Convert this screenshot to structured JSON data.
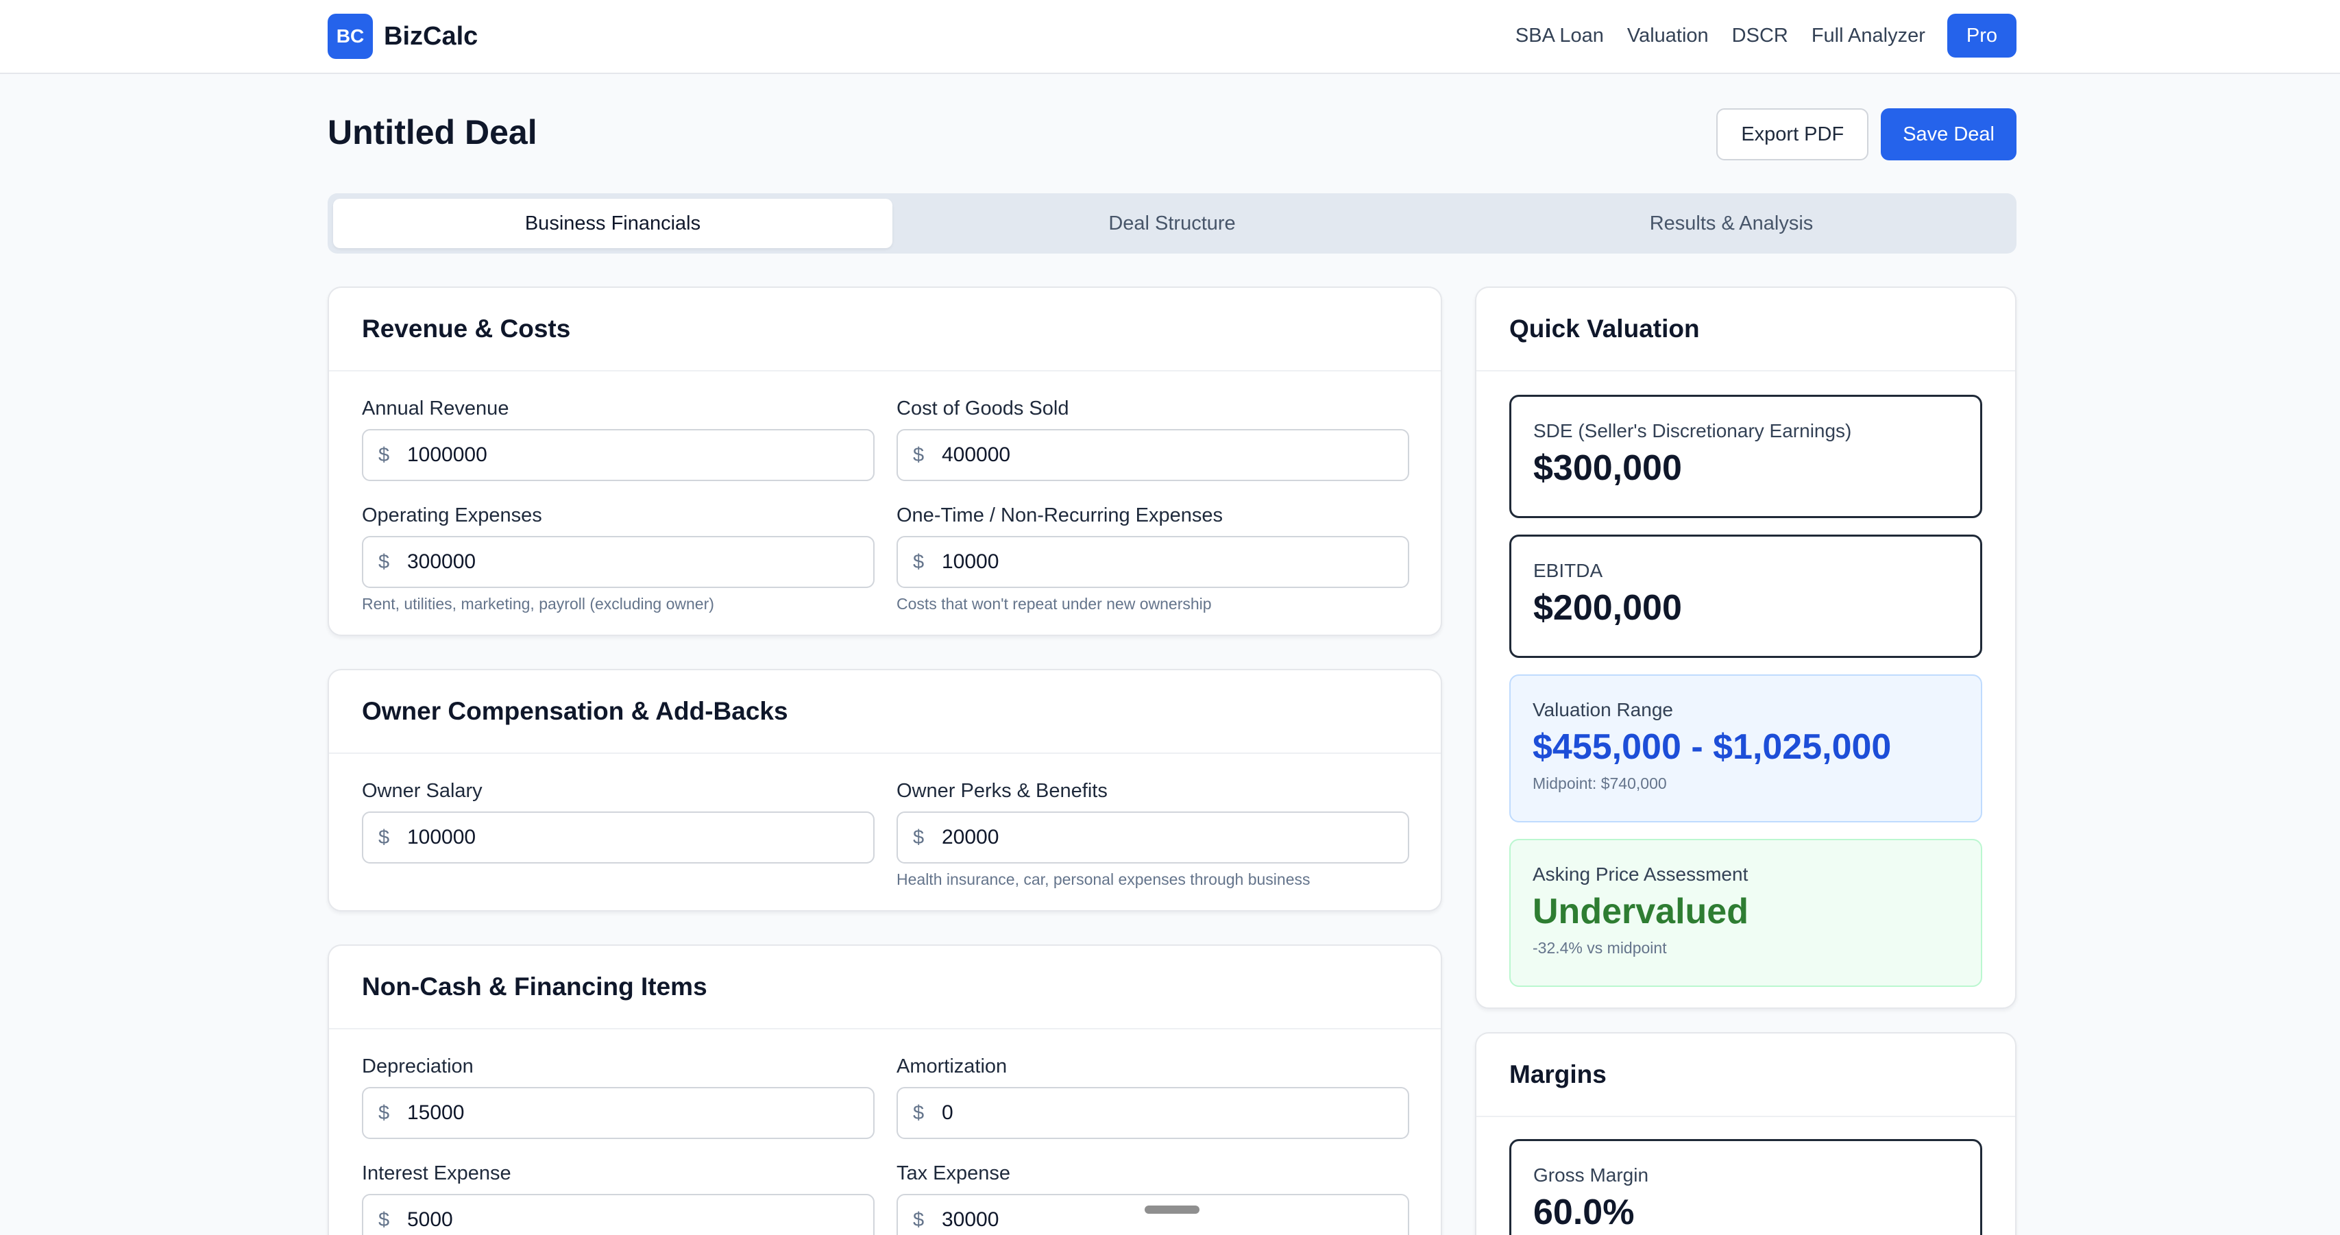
{
  "brand": {
    "badge": "BC",
    "name": "BizCalc"
  },
  "nav": {
    "links": [
      "SBA Loan",
      "Valuation",
      "DSCR",
      "Full Analyzer"
    ],
    "pro": "Pro"
  },
  "page": {
    "title": "Untitled Deal",
    "export_label": "Export PDF",
    "save_label": "Save Deal"
  },
  "tabs": [
    {
      "label": "Business Financials",
      "active": true
    },
    {
      "label": "Deal Structure",
      "active": false
    },
    {
      "label": "Results & Analysis",
      "active": false
    }
  ],
  "revenue_costs": {
    "title": "Revenue & Costs",
    "fields": [
      {
        "label": "Annual Revenue",
        "currency": "$",
        "value": "1000000",
        "hint": ""
      },
      {
        "label": "Cost of Goods Sold",
        "currency": "$",
        "value": "400000",
        "hint": ""
      },
      {
        "label": "Operating Expenses",
        "currency": "$",
        "value": "300000",
        "hint": "Rent, utilities, marketing, payroll (excluding owner)"
      },
      {
        "label": "One-Time / Non-Recurring Expenses",
        "currency": "$",
        "value": "10000",
        "hint": "Costs that won't repeat under new ownership"
      }
    ]
  },
  "owner_comp": {
    "title": "Owner Compensation & Add-Backs",
    "fields": [
      {
        "label": "Owner Salary",
        "currency": "$",
        "value": "100000",
        "hint": ""
      },
      {
        "label": "Owner Perks & Benefits",
        "currency": "$",
        "value": "20000",
        "hint": "Health insurance, car, personal expenses through business"
      }
    ]
  },
  "non_cash": {
    "title": "Non-Cash & Financing Items",
    "fields": [
      {
        "label": "Depreciation",
        "currency": "$",
        "value": "15000",
        "hint": ""
      },
      {
        "label": "Amortization",
        "currency": "$",
        "value": "0",
        "hint": ""
      },
      {
        "label": "Interest Expense",
        "currency": "$",
        "value": "5000",
        "hint": ""
      },
      {
        "label": "Tax Expense",
        "currency": "$",
        "value": "30000",
        "hint": ""
      }
    ]
  },
  "quick_valuation": {
    "title": "Quick Valuation",
    "sde": {
      "label": "SDE (Seller's Discretionary Earnings)",
      "value": "$300,000"
    },
    "ebitda": {
      "label": "EBITDA",
      "value": "$200,000"
    },
    "range": {
      "label": "Valuation Range",
      "value": "$455,000 - $1,025,000",
      "sub": "Midpoint: $740,000"
    },
    "assessment": {
      "label": "Asking Price Assessment",
      "value": "Undervalued",
      "sub": "-32.4% vs midpoint"
    }
  },
  "margins": {
    "title": "Margins",
    "gross": {
      "label": "Gross Margin",
      "value": "60.0%"
    }
  },
  "colors": {
    "accent": "#2563eb",
    "undervalued": "#2e7d32",
    "range": "#1d4ed8"
  }
}
